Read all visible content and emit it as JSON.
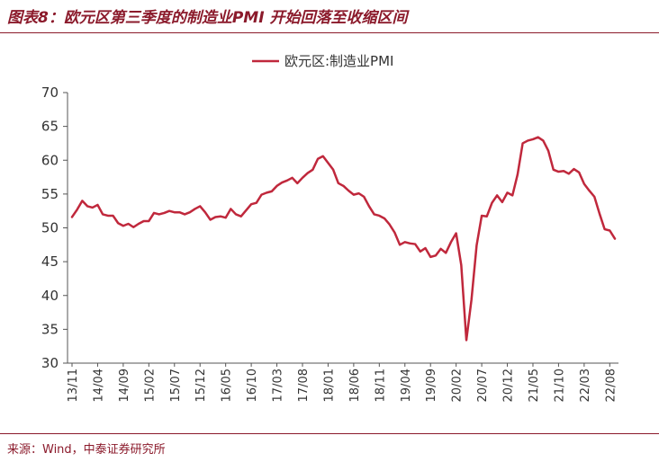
{
  "title": "图表8：欧元区第三季度的制造业PMI 开始回落至收缩区间",
  "source": "来源：Wind，中泰证券研究所",
  "colors": {
    "accent": "#8b1a2b",
    "series": "#c0283c"
  },
  "chart_data": {
    "type": "line",
    "title": "",
    "xlabel": "",
    "ylabel": "",
    "ylim": [
      30,
      70
    ],
    "yticks": [
      "30",
      "35",
      "40",
      "45",
      "50",
      "55",
      "60",
      "65",
      "70"
    ],
    "x_tick_labels": [
      "13/11",
      "14/04",
      "14/09",
      "15/02",
      "15/07",
      "15/12",
      "16/05",
      "16/10",
      "17/03",
      "17/08",
      "18/01",
      "18/06",
      "18/11",
      "19/04",
      "19/09",
      "20/02",
      "20/07",
      "20/12",
      "21/05",
      "21/10",
      "22/03",
      "22/08"
    ],
    "grid": false,
    "legend": "top-center",
    "series": [
      {
        "name": "欧元区:制造业PMI",
        "x_start": "2013-11",
        "x_end": "2022-09",
        "values": [
          51.6,
          52.7,
          54.0,
          53.2,
          53.0,
          53.4,
          52.0,
          51.8,
          51.8,
          50.7,
          50.3,
          50.6,
          50.1,
          50.6,
          51.0,
          51.0,
          52.2,
          52.0,
          52.2,
          52.5,
          52.3,
          52.3,
          52.0,
          52.3,
          52.8,
          53.2,
          52.3,
          51.2,
          51.6,
          51.7,
          51.5,
          52.8,
          52.0,
          51.7,
          52.6,
          53.5,
          53.7,
          54.9,
          55.2,
          55.4,
          56.2,
          56.7,
          57.0,
          57.4,
          56.6,
          57.4,
          58.1,
          58.6,
          60.2,
          60.6,
          59.6,
          58.6,
          56.6,
          56.2,
          55.5,
          54.9,
          55.1,
          54.6,
          53.2,
          52.0,
          51.8,
          51.4,
          50.5,
          49.3,
          47.5,
          47.9,
          47.7,
          47.6,
          46.5,
          47.0,
          45.7,
          45.9,
          46.9,
          46.3,
          47.9,
          49.2,
          44.5,
          33.4,
          39.4,
          47.4,
          51.8,
          51.7,
          53.7,
          54.8,
          53.8,
          55.2,
          54.8,
          57.9,
          62.5,
          62.9,
          63.1,
          63.4,
          62.9,
          61.4,
          58.6,
          58.3,
          58.4,
          58.0,
          58.7,
          58.2,
          56.5,
          55.5,
          54.6,
          52.1,
          49.8,
          49.6,
          48.4
        ]
      }
    ]
  }
}
